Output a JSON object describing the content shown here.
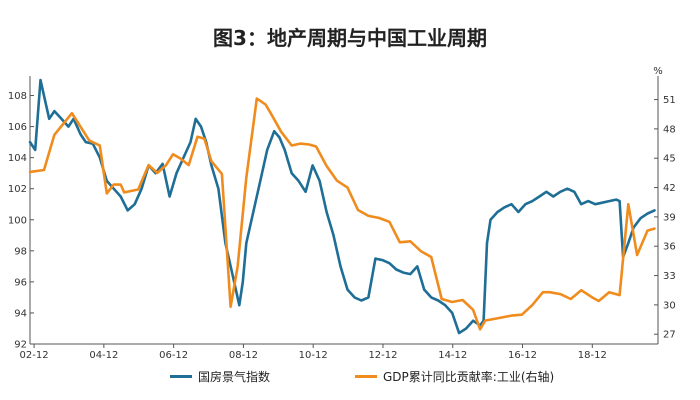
{
  "chart_data": {
    "type": "line",
    "title": "图3：地产周期与中国工业周期",
    "y_left": {
      "ylim": [
        92,
        109
      ],
      "ticks": [
        92,
        94,
        96,
        98,
        100,
        102,
        104,
        106,
        108
      ]
    },
    "y_right": {
      "unit": "%",
      "ylim": [
        26,
        53
      ],
      "ticks": [
        27,
        30,
        33,
        36,
        39,
        42,
        45,
        48,
        51
      ]
    },
    "x_ticks": [
      "02-12",
      "04-12",
      "06-12",
      "08-12",
      "10-12",
      "12-12",
      "14-12",
      "16-12",
      "18-12"
    ],
    "x_tick_t": [
      2002.917,
      2004.917,
      2006.917,
      2008.917,
      2010.917,
      2012.917,
      2014.917,
      2016.917,
      2018.917
    ],
    "xlim": [
      2002.8,
      2020.8
    ],
    "series": [
      {
        "name": "国房景气指数",
        "axis": "left",
        "color": "#1f6e96",
        "t": [
          2002.8,
          2002.95,
          2003.1,
          2003.25,
          2003.35,
          2003.5,
          2003.7,
          2003.9,
          2004.05,
          2004.25,
          2004.4,
          2004.6,
          2004.8,
          2005.0,
          2005.2,
          2005.4,
          2005.6,
          2005.8,
          2006.0,
          2006.2,
          2006.4,
          2006.6,
          2006.8,
          2007.0,
          2007.2,
          2007.4,
          2007.55,
          2007.7,
          2007.85,
          2008.0,
          2008.2,
          2008.4,
          2008.6,
          2008.8,
          2008.9,
          2009.0,
          2009.2,
          2009.4,
          2009.6,
          2009.8,
          2009.95,
          2010.1,
          2010.3,
          2010.5,
          2010.7,
          2010.9,
          2011.1,
          2011.3,
          2011.5,
          2011.7,
          2011.9,
          2012.1,
          2012.3,
          2012.5,
          2012.7,
          2012.9,
          2013.1,
          2013.3,
          2013.5,
          2013.7,
          2013.9,
          2014.1,
          2014.3,
          2014.5,
          2014.7,
          2014.9,
          2015.1,
          2015.3,
          2015.5,
          2015.7,
          2015.8,
          2015.9,
          2016.0,
          2016.2,
          2016.4,
          2016.6,
          2016.8,
          2017.0,
          2017.2,
          2017.4,
          2017.6,
          2017.8,
          2018.0,
          2018.2,
          2018.4,
          2018.6,
          2018.8,
          2019.0,
          2019.2,
          2019.4,
          2019.6,
          2019.7,
          2019.8,
          2019.95,
          2020.1,
          2020.3,
          2020.5,
          2020.7
        ],
        "values": [
          105.0,
          104.5,
          109.0,
          107.5,
          106.5,
          107.0,
          106.5,
          106.0,
          106.5,
          105.5,
          105.0,
          104.9,
          104.0,
          102.5,
          102.0,
          101.5,
          100.6,
          101.0,
          102.0,
          103.5,
          103.0,
          103.6,
          101.5,
          103.0,
          104.0,
          105.0,
          106.5,
          106.0,
          105.0,
          103.5,
          102.0,
          98.5,
          96.5,
          94.5,
          96.0,
          98.5,
          100.5,
          102.5,
          104.5,
          105.7,
          105.3,
          104.5,
          103.0,
          102.5,
          101.8,
          103.5,
          102.5,
          100.5,
          99.0,
          97.0,
          95.5,
          95.0,
          94.8,
          95.0,
          97.5,
          97.4,
          97.2,
          96.8,
          96.6,
          96.5,
          97.0,
          95.5,
          95.0,
          94.8,
          94.5,
          94.0,
          92.7,
          93.0,
          93.5,
          93.2,
          93.5,
          98.5,
          100.0,
          100.5,
          100.8,
          101.0,
          100.5,
          101.0,
          101.2,
          101.5,
          101.8,
          101.5,
          101.8,
          102.0,
          101.8,
          101.0,
          101.2,
          101.0,
          101.1,
          101.2,
          101.3,
          101.2,
          97.6,
          98.5,
          99.5,
          100.1,
          100.4,
          100.6
        ]
      },
      {
        "name": "GDP累计同比贡献率:工业(右轴)",
        "axis": "right",
        "color": "#f08c1e",
        "t": [
          2002.8,
          2003.2,
          2003.5,
          2004.0,
          2004.2,
          2004.5,
          2004.8,
          2005.0,
          2005.2,
          2005.4,
          2005.5,
          2005.9,
          2006.2,
          2006.45,
          2006.7,
          2006.9,
          2007.1,
          2007.35,
          2007.6,
          2007.8,
          2008.0,
          2008.3,
          2008.55,
          2008.75,
          2009.0,
          2009.3,
          2009.55,
          2009.7,
          2010.0,
          2010.3,
          2010.55,
          2010.8,
          2011.0,
          2011.3,
          2011.6,
          2011.9,
          2012.2,
          2012.5,
          2012.8,
          2013.1,
          2013.4,
          2013.7,
          2014.0,
          2014.3,
          2014.6,
          2014.9,
          2015.2,
          2015.5,
          2015.7,
          2015.85,
          2016.0,
          2016.3,
          2016.6,
          2016.9,
          2017.2,
          2017.5,
          2017.7,
          2018.0,
          2018.3,
          2018.6,
          2018.9,
          2019.1,
          2019.4,
          2019.7,
          2019.95,
          2020.2,
          2020.5,
          2020.7
        ],
        "values": [
          43.6,
          43.8,
          47.4,
          49.6,
          48.5,
          46.8,
          46.3,
          41.4,
          42.3,
          42.3,
          41.5,
          41.8,
          44.3,
          43.5,
          44.3,
          45.4,
          45.0,
          44.3,
          47.2,
          47.0,
          44.7,
          43.4,
          29.8,
          33.9,
          43.0,
          51.1,
          50.5,
          49.6,
          47.7,
          46.3,
          46.5,
          46.4,
          46.2,
          44.2,
          42.7,
          42.0,
          39.7,
          39.1,
          38.9,
          38.5,
          36.4,
          36.5,
          35.5,
          34.9,
          30.6,
          30.3,
          30.5,
          29.5,
          27.5,
          28.4,
          28.5,
          28.7,
          28.9,
          29.0,
          30.0,
          31.3,
          31.3,
          31.1,
          30.6,
          31.5,
          30.8,
          30.4,
          31.3,
          31.0,
          40.3,
          35.1,
          37.6,
          37.8
        ]
      }
    ],
    "legend_position": "bottom",
    "grid": false
  }
}
